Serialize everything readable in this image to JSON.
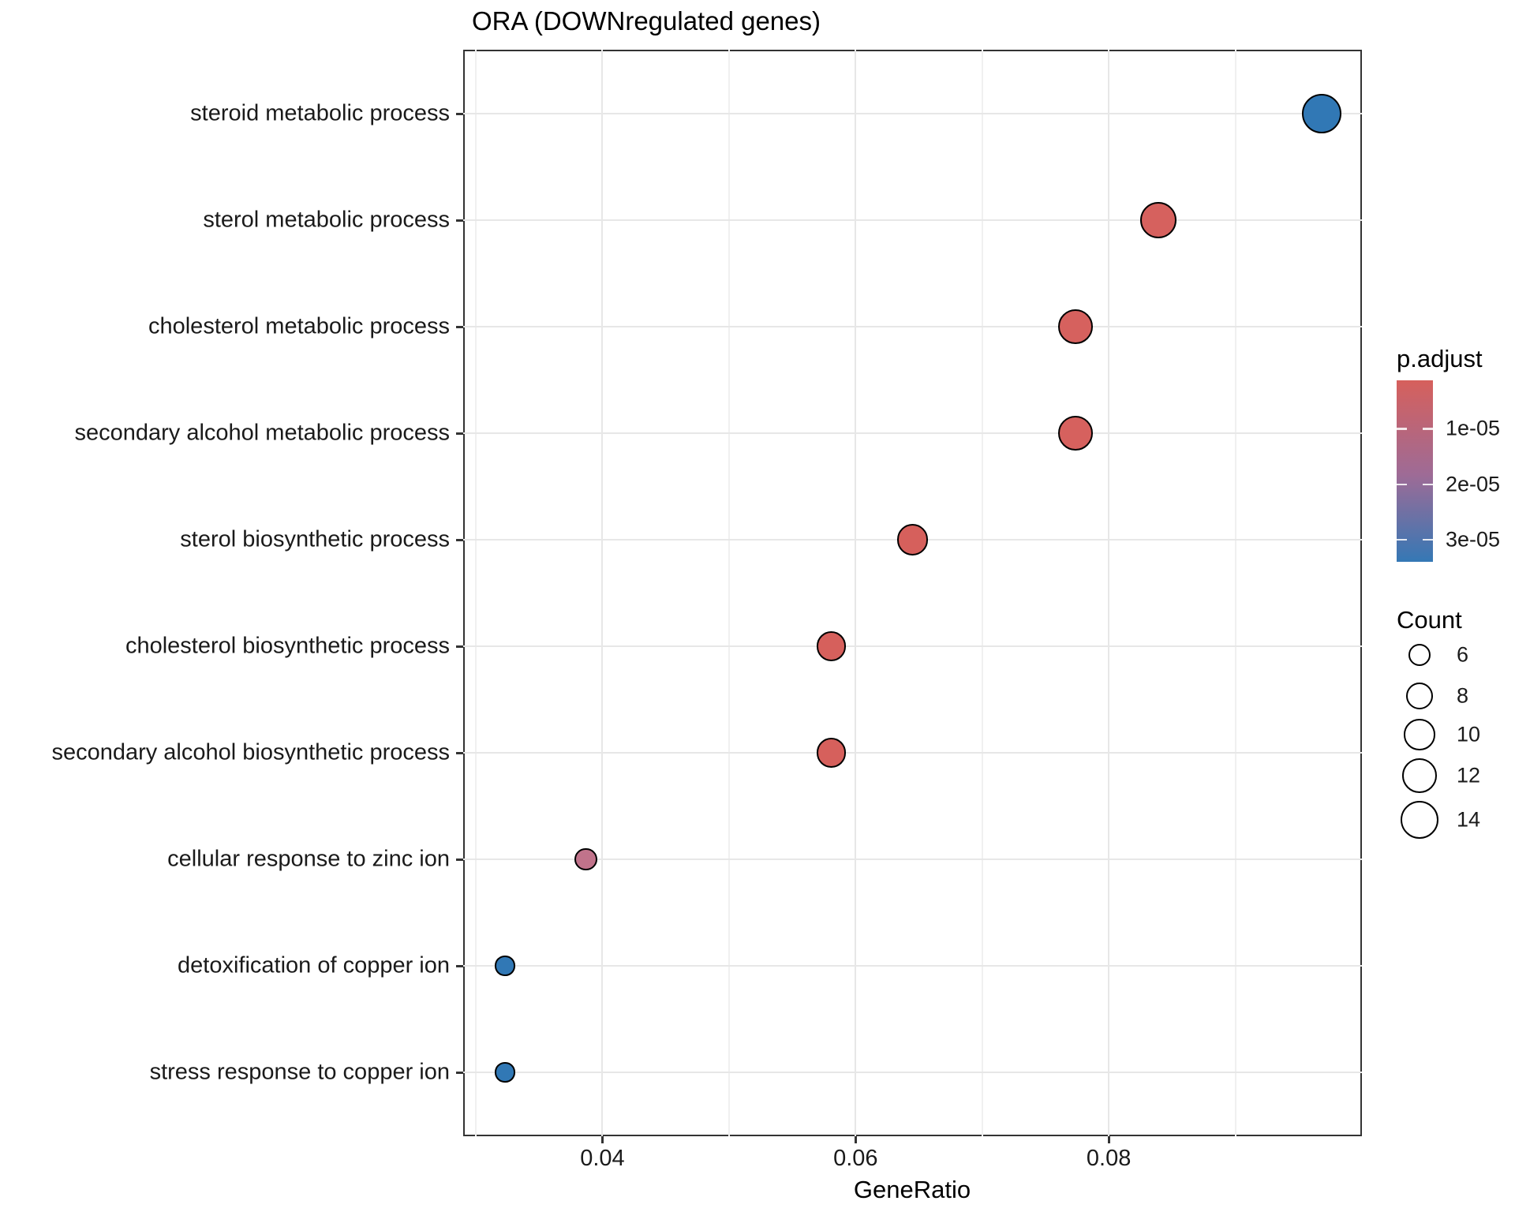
{
  "title": "ORA (DOWNregulated genes)",
  "chart_data": {
    "type": "scatter",
    "subtype": "dotplot-ora",
    "title": "ORA (DOWNregulated genes)",
    "xlabel": "GeneRatio",
    "ylabel": "",
    "xlim": [
      0.029,
      0.1
    ],
    "x_ticks": [
      0.04,
      0.06,
      0.08
    ],
    "x_tick_labels": [
      "0.04",
      "0.06",
      "0.08"
    ],
    "x_minor_ticks": [
      0.03,
      0.05,
      0.07,
      0.09
    ],
    "grid": true,
    "legend_position": "right",
    "categories": [
      "steroid metabolic process",
      "sterol metabolic process",
      "cholesterol metabolic process",
      "secondary alcohol metabolic process",
      "sterol biosynthetic process",
      "cholesterol biosynthetic process",
      "secondary alcohol biosynthetic process",
      "cellular response to zinc ion",
      "detoxification of copper ion",
      "stress response to copper ion"
    ],
    "points": [
      {
        "term": "steroid metabolic process",
        "gene_ratio": 0.0968,
        "count": 15,
        "p_adjust": 3e-05,
        "color": "#3178b5"
      },
      {
        "term": "sterol metabolic process",
        "gene_ratio": 0.0839,
        "count": 13,
        "p_adjust": 2e-06,
        "color": "#d6615e"
      },
      {
        "term": "cholesterol metabolic process",
        "gene_ratio": 0.0774,
        "count": 12,
        "p_adjust": 2e-06,
        "color": "#d6615e"
      },
      {
        "term": "secondary alcohol metabolic process",
        "gene_ratio": 0.0774,
        "count": 12,
        "p_adjust": 2e-06,
        "color": "#d6615e"
      },
      {
        "term": "sterol biosynthetic process",
        "gene_ratio": 0.0645,
        "count": 10,
        "p_adjust": 2.5e-06,
        "color": "#d6605c"
      },
      {
        "term": "cholesterol biosynthetic process",
        "gene_ratio": 0.0581,
        "count": 9,
        "p_adjust": 3e-06,
        "color": "#d6605c"
      },
      {
        "term": "secondary alcohol biosynthetic process",
        "gene_ratio": 0.0581,
        "count": 9,
        "p_adjust": 3e-06,
        "color": "#d6605c"
      },
      {
        "term": "cellular response to zinc ion",
        "gene_ratio": 0.0387,
        "count": 6,
        "p_adjust": 1.4e-05,
        "color": "#c1738b"
      },
      {
        "term": "detoxification of copper ion",
        "gene_ratio": 0.0323,
        "count": 5,
        "p_adjust": 3.2e-05,
        "color": "#3178b5"
      },
      {
        "term": "stress response to copper ion",
        "gene_ratio": 0.0323,
        "count": 5,
        "p_adjust": 3.2e-05,
        "color": "#3178b5"
      }
    ],
    "legend": {
      "p_adjust": {
        "title": "p.adjust",
        "tick_labels": [
          "1e-05",
          "2e-05",
          "3e-05"
        ],
        "tick_values": [
          1e-05,
          2e-05,
          3e-05
        ],
        "scale_range": [
          1.3e-06,
          3.4e-05
        ],
        "color_low": "#d6605c",
        "color_mid": "#9e6b96",
        "color_high": "#3578b5"
      },
      "count": {
        "title": "Count",
        "breaks": [
          6,
          8,
          10,
          12,
          14
        ],
        "labels": [
          "6",
          "8",
          "10",
          "12",
          "14"
        ]
      }
    }
  }
}
